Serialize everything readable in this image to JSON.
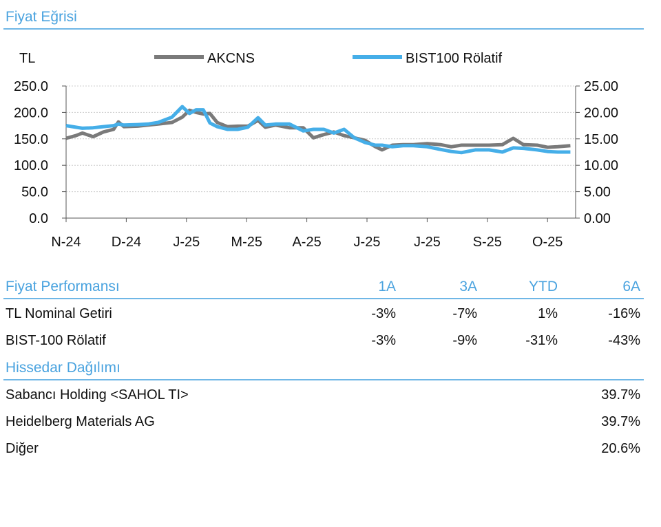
{
  "title": "Fiyat Eğrisi",
  "chart_data": {
    "type": "line",
    "left_axis_label": "TL",
    "left_ticks": [
      "250.0",
      "200.0",
      "150.0",
      "100.0",
      "50.0",
      "0.0"
    ],
    "right_ticks": [
      "25.00",
      "20.00",
      "15.00",
      "10.00",
      "5.00",
      "0.00"
    ],
    "ylim_left": [
      0,
      250
    ],
    "ylim_right": [
      0,
      25
    ],
    "x_ticks": [
      "N-24",
      "D-24",
      "J-25",
      "M-25",
      "A-25",
      "J-25",
      "J-25",
      "S-25",
      "O-25"
    ],
    "x_months": [
      0,
      0.16,
      0.27,
      0.45,
      0.62,
      0.79,
      0.87,
      0.96,
      1.19,
      1.36,
      1.53,
      1.76,
      1.93,
      2.05,
      2.16,
      2.28,
      2.39,
      2.51,
      2.68,
      2.85,
      3.02,
      3.19,
      3.31,
      3.48,
      3.71,
      3.94,
      4.11,
      4.28,
      4.45,
      4.62,
      4.79,
      4.97,
      5.14,
      5.25,
      5.42,
      5.6,
      5.77,
      6.0,
      6.22,
      6.4,
      6.57,
      6.8,
      7.03,
      7.25,
      7.43,
      7.6,
      7.83,
      8.0,
      8.17,
      8.38
    ],
    "series": [
      {
        "name": "AKCNS",
        "axis": "left",
        "color": "#7a7a7a",
        "values": [
          151,
          156,
          161,
          154,
          163,
          168,
          182,
          173,
          174,
          176,
          178,
          181,
          191,
          204,
          200,
          197,
          198,
          181,
          173,
          174,
          174,
          185,
          172,
          176,
          171,
          171,
          152,
          158,
          163,
          156,
          152,
          147,
          135,
          129,
          138,
          139,
          139,
          141,
          139,
          135,
          138,
          138,
          138,
          139,
          151,
          139,
          138,
          134,
          135,
          137
        ]
      },
      {
        "name": "BIST100 Rölatif",
        "axis": "right",
        "color": "#45aee8",
        "values": [
          17.5,
          17.2,
          17.0,
          17.1,
          17.3,
          17.5,
          17.8,
          17.6,
          17.7,
          17.8,
          18.1,
          19.1,
          21.1,
          19.8,
          20.5,
          20.5,
          18.0,
          17.3,
          16.8,
          16.8,
          17.2,
          19.0,
          17.6,
          17.8,
          17.8,
          16.5,
          16.8,
          16.8,
          16.1,
          16.8,
          15.2,
          14.3,
          13.8,
          13.8,
          13.5,
          13.7,
          13.7,
          13.5,
          13.0,
          12.6,
          12.4,
          12.9,
          12.9,
          12.5,
          13.3,
          13.2,
          12.9,
          12.6,
          12.5,
          12.5
        ]
      }
    ]
  },
  "performance": {
    "title": "Fiyat Performansı",
    "headers": [
      "1A",
      "3A",
      "YTD",
      "6A"
    ],
    "rows": [
      {
        "label": "TL Nominal Getiri",
        "values": [
          "-3%",
          "-7%",
          "1%",
          "-16%"
        ]
      },
      {
        "label": "BIST-100 Rölatif",
        "values": [
          "-3%",
          "-9%",
          "-31%",
          "-43%"
        ]
      }
    ]
  },
  "shareholders": {
    "title": "Hissedar Dağılımı",
    "rows": [
      {
        "label": "Sabancı Holding <SAHOL TI>",
        "value": "39.7%"
      },
      {
        "label": "Heidelberg Materials AG",
        "value": "39.7%"
      },
      {
        "label": "Diğer",
        "value": "20.6%"
      }
    ]
  }
}
